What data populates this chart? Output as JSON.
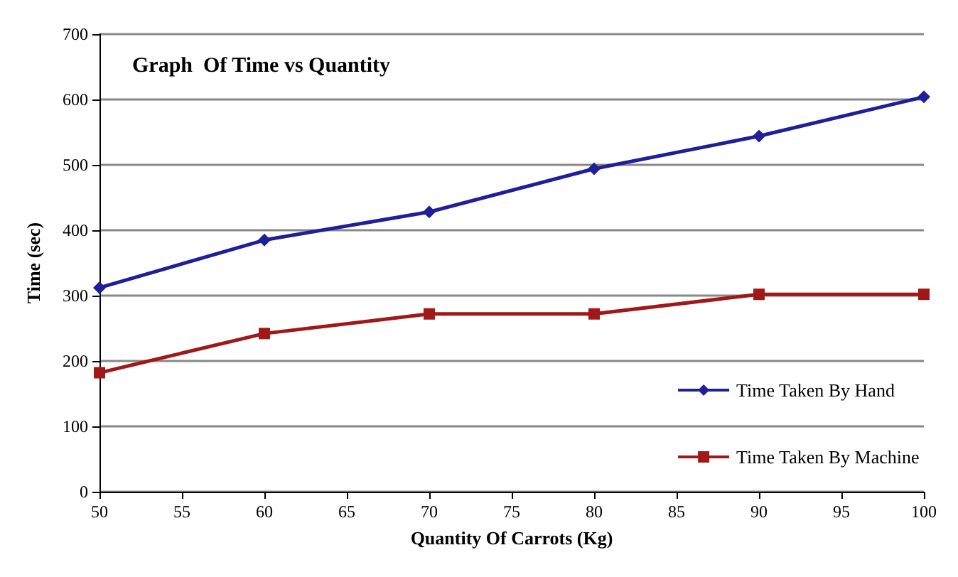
{
  "chart_data": {
    "type": "line",
    "title": "Graph  Of Time vs Quantity",
    "xlabel": "Quantity Of Carrots (Kg)",
    "ylabel": "Time (sec)",
    "x": [
      50,
      60,
      70,
      80,
      90,
      100
    ],
    "series": [
      {
        "name": "Time Taken By Hand",
        "color": "#1f1f9a",
        "marker": "diamond",
        "values": [
          312,
          385,
          428,
          494,
          544,
          604
        ]
      },
      {
        "name": "Time Taken By Machine",
        "color": "#a01818",
        "marker": "square",
        "values": [
          182,
          242,
          272,
          272,
          302,
          302
        ]
      }
    ],
    "xlim": [
      50,
      100
    ],
    "xticks": [
      50,
      55,
      60,
      65,
      70,
      75,
      80,
      85,
      90,
      95,
      100
    ],
    "ylim": [
      0,
      700
    ],
    "yticks": [
      0,
      100,
      200,
      300,
      400,
      500,
      600,
      700
    ],
    "grid": "y",
    "legend": "right",
    "line_style": "solid"
  }
}
